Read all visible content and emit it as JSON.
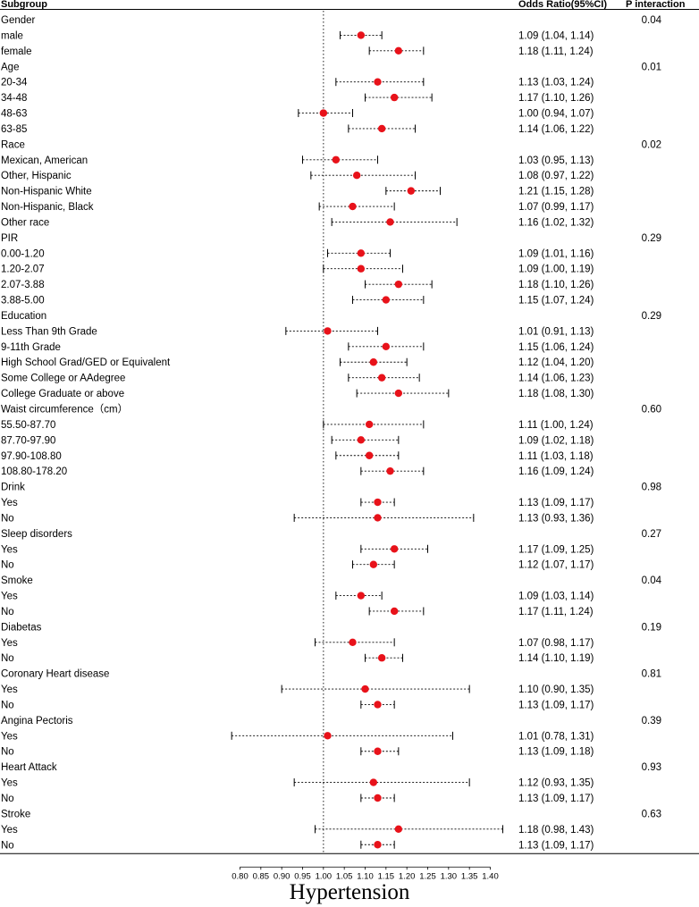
{
  "chart_data": {
    "type": "forest",
    "headers": {
      "subgroup": "Subgroup",
      "odds_ratio": "Odds Ratio(95%CI)",
      "p_interaction": "P interaction"
    },
    "xlabel": "Hypertension",
    "reference_line": 1.0,
    "xlim": [
      0.78,
      1.43
    ],
    "ticks": [
      "0.80",
      "0.85",
      "0.90",
      "0.95",
      "1.00",
      "1.05",
      "1.10",
      "1.15",
      "1.20",
      "1.25",
      "1.30",
      "1.35",
      "1.40"
    ],
    "rows": [
      {
        "label": "Gender",
        "header": true,
        "p": "0.04"
      },
      {
        "label": "male",
        "or": 1.09,
        "lo": 1.04,
        "hi": 1.14,
        "text": "1.09 (1.04, 1.14)"
      },
      {
        "label": "female",
        "or": 1.18,
        "lo": 1.11,
        "hi": 1.24,
        "text": "1.18 (1.11, 1.24)"
      },
      {
        "label": "Age",
        "header": true,
        "p": "0.01"
      },
      {
        "label": "20-34",
        "or": 1.13,
        "lo": 1.03,
        "hi": 1.24,
        "text": "1.13 (1.03, 1.24)"
      },
      {
        "label": "34-48",
        "or": 1.17,
        "lo": 1.1,
        "hi": 1.26,
        "text": "1.17 (1.10, 1.26)"
      },
      {
        "label": "48-63",
        "or": 1.0,
        "lo": 0.94,
        "hi": 1.07,
        "text": "1.00 (0.94, 1.07)"
      },
      {
        "label": "63-85",
        "or": 1.14,
        "lo": 1.06,
        "hi": 1.22,
        "text": "1.14 (1.06, 1.22)"
      },
      {
        "label": "Race",
        "header": true,
        "p": "0.02"
      },
      {
        "label": "Mexican, American",
        "or": 1.03,
        "lo": 0.95,
        "hi": 1.13,
        "text": "1.03 (0.95, 1.13)"
      },
      {
        "label": "Other, Hispanic",
        "or": 1.08,
        "lo": 0.97,
        "hi": 1.22,
        "text": "1.08 (0.97, 1.22)"
      },
      {
        "label": "Non-Hispanic White",
        "or": 1.21,
        "lo": 1.15,
        "hi": 1.28,
        "text": "1.21 (1.15, 1.28)"
      },
      {
        "label": "Non-Hispanic, Black",
        "or": 1.07,
        "lo": 0.99,
        "hi": 1.17,
        "text": "1.07 (0.99, 1.17)"
      },
      {
        "label": "Other race",
        "or": 1.16,
        "lo": 1.02,
        "hi": 1.32,
        "text": "1.16 (1.02, 1.32)"
      },
      {
        "label": "PIR",
        "header": true,
        "p": "0.29"
      },
      {
        "label": "0.00-1.20",
        "or": 1.09,
        "lo": 1.01,
        "hi": 1.16,
        "text": "1.09 (1.01, 1.16)"
      },
      {
        "label": "1.20-2.07",
        "or": 1.09,
        "lo": 1.0,
        "hi": 1.19,
        "text": "1.09 (1.00, 1.19)"
      },
      {
        "label": "2.07-3.88",
        "or": 1.18,
        "lo": 1.1,
        "hi": 1.26,
        "text": "1.18 (1.10, 1.26)"
      },
      {
        "label": "3.88-5.00",
        "or": 1.15,
        "lo": 1.07,
        "hi": 1.24,
        "text": "1.15 (1.07, 1.24)"
      },
      {
        "label": "Education",
        "header": true,
        "p": "0.29"
      },
      {
        "label": "Less Than 9th Grade",
        "or": 1.01,
        "lo": 0.91,
        "hi": 1.13,
        "text": "1.01 (0.91, 1.13)"
      },
      {
        "label": "9-11th Grade",
        "or": 1.15,
        "lo": 1.06,
        "hi": 1.24,
        "text": "1.15 (1.06, 1.24)"
      },
      {
        "label": "High School Grad/GED or Equivalent",
        "or": 1.12,
        "lo": 1.04,
        "hi": 1.2,
        "text": "1.12 (1.04, 1.20)"
      },
      {
        "label": "Some College or AAdegree",
        "or": 1.14,
        "lo": 1.06,
        "hi": 1.23,
        "text": "1.14 (1.06, 1.23)"
      },
      {
        "label": "College Graduate or above",
        "or": 1.18,
        "lo": 1.08,
        "hi": 1.3,
        "text": "1.18 (1.08, 1.30)"
      },
      {
        "label": "Waist circumference（cm）",
        "header": true,
        "p": "0.60"
      },
      {
        "label": "55.50-87.70",
        "or": 1.11,
        "lo": 1.0,
        "hi": 1.24,
        "text": "1.11 (1.00, 1.24)"
      },
      {
        "label": "87.70-97.90",
        "or": 1.09,
        "lo": 1.02,
        "hi": 1.18,
        "text": "1.09 (1.02, 1.18)"
      },
      {
        "label": "97.90-108.80",
        "or": 1.11,
        "lo": 1.03,
        "hi": 1.18,
        "text": "1.11 (1.03, 1.18)"
      },
      {
        "label": "108.80-178.20",
        "or": 1.16,
        "lo": 1.09,
        "hi": 1.24,
        "text": "1.16 (1.09, 1.24)"
      },
      {
        "label": "Drink",
        "header": true,
        "p": "0.98"
      },
      {
        "label": "Yes",
        "or": 1.13,
        "lo": 1.09,
        "hi": 1.17,
        "text": "1.13 (1.09, 1.17)"
      },
      {
        "label": "No",
        "or": 1.13,
        "lo": 0.93,
        "hi": 1.36,
        "text": "1.13 (0.93, 1.36)"
      },
      {
        "label": "Sleep disorders",
        "header": true,
        "p": "0.27"
      },
      {
        "label": "Yes",
        "or": 1.17,
        "lo": 1.09,
        "hi": 1.25,
        "text": "1.17 (1.09, 1.25)"
      },
      {
        "label": "No",
        "or": 1.12,
        "lo": 1.07,
        "hi": 1.17,
        "text": "1.12 (1.07, 1.17)"
      },
      {
        "label": "Smoke",
        "header": true,
        "p": "0.04"
      },
      {
        "label": "Yes",
        "or": 1.09,
        "lo": 1.03,
        "hi": 1.14,
        "text": "1.09 (1.03, 1.14)"
      },
      {
        "label": "No",
        "or": 1.17,
        "lo": 1.11,
        "hi": 1.24,
        "text": "1.17 (1.11, 1.24)"
      },
      {
        "label": "Diabetas",
        "header": true,
        "p": "0.19"
      },
      {
        "label": "Yes",
        "or": 1.07,
        "lo": 0.98,
        "hi": 1.17,
        "text": "1.07 (0.98, 1.17)"
      },
      {
        "label": "No",
        "or": 1.14,
        "lo": 1.1,
        "hi": 1.19,
        "text": "1.14 (1.10, 1.19)"
      },
      {
        "label": "Coronary Heart disease",
        "header": true,
        "p": "0.81"
      },
      {
        "label": "Yes",
        "or": 1.1,
        "lo": 0.9,
        "hi": 1.35,
        "text": "1.10 (0.90, 1.35)"
      },
      {
        "label": "No",
        "or": 1.13,
        "lo": 1.09,
        "hi": 1.17,
        "text": "1.13 (1.09, 1.17)"
      },
      {
        "label": "Angina Pectoris",
        "header": true,
        "p": "0.39"
      },
      {
        "label": "Yes",
        "or": 1.01,
        "lo": 0.78,
        "hi": 1.31,
        "text": "1.01 (0.78, 1.31)"
      },
      {
        "label": "No",
        "or": 1.13,
        "lo": 1.09,
        "hi": 1.18,
        "text": "1.13 (1.09, 1.18)"
      },
      {
        "label": "Heart Attack",
        "header": true,
        "p": "0.93"
      },
      {
        "label": "Yes",
        "or": 1.12,
        "lo": 0.93,
        "hi": 1.35,
        "text": "1.12 (0.93, 1.35)"
      },
      {
        "label": "No",
        "or": 1.13,
        "lo": 1.09,
        "hi": 1.17,
        "text": "1.13 (1.09, 1.17)"
      },
      {
        "label": "Stroke",
        "header": true,
        "p": "0.63"
      },
      {
        "label": "Yes",
        "or": 1.18,
        "lo": 0.98,
        "hi": 1.43,
        "text": "1.18 (0.98, 1.43)"
      },
      {
        "label": "No",
        "or": 1.13,
        "lo": 1.09,
        "hi": 1.17,
        "text": "1.13 (1.09, 1.17)"
      }
    ],
    "colors": {
      "point": "#e8121a",
      "line": "#000000"
    }
  }
}
